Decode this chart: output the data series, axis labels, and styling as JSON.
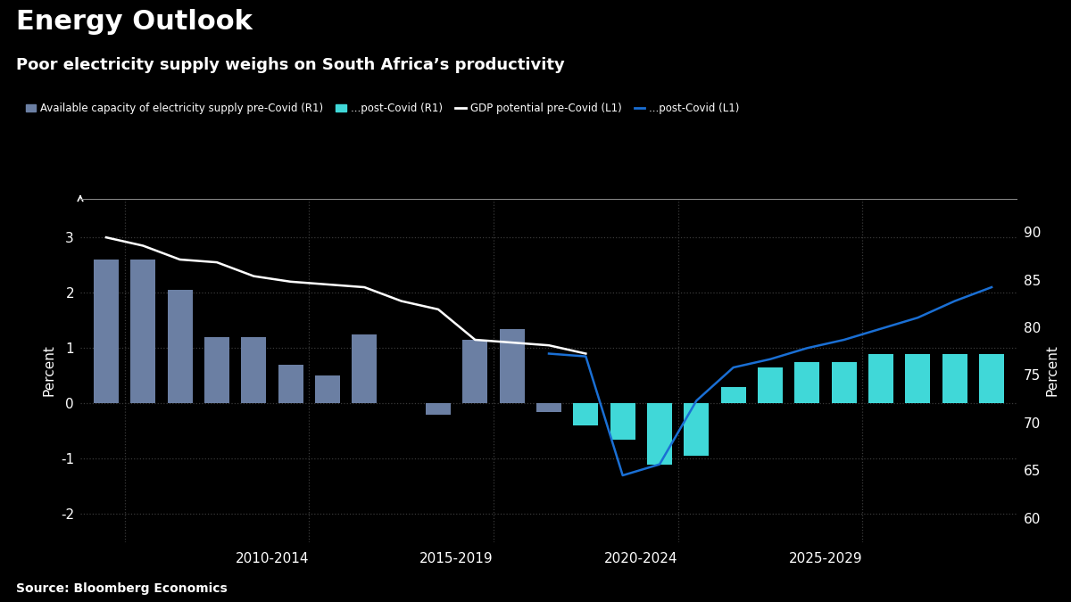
{
  "title": "Energy Outlook",
  "subtitle": "Poor electricity supply weighs on South Africa’s productivity",
  "source": "Source: Bloomberg Economics",
  "background_color": "#000000",
  "text_color": "#ffffff",
  "ylabel_left": "Percent",
  "ylabel_right": "Percent",
  "ylim_left": [
    -2.5,
    3.7
  ],
  "ylim_right": [
    57.5,
    93.5
  ],
  "yticks_left": [
    -2,
    -1,
    0,
    1,
    2,
    3
  ],
  "yticks_right": [
    60,
    65,
    70,
    75,
    80,
    85,
    90
  ],
  "years": [
    2007,
    2008,
    2009,
    2010,
    2011,
    2012,
    2013,
    2014,
    2015,
    2016,
    2017,
    2018,
    2019,
    2020,
    2021,
    2022,
    2023,
    2024,
    2025,
    2026,
    2027,
    2028,
    2029,
    2030,
    2031
  ],
  "bar_pre_covid": [
    2.6,
    2.6,
    2.05,
    1.2,
    1.2,
    0.7,
    0.5,
    1.25,
    0.0,
    -0.2,
    1.15,
    1.35,
    -0.15,
    null,
    null,
    null,
    null,
    null,
    null,
    null,
    null,
    null,
    null,
    null,
    null
  ],
  "bar_post_covid": [
    null,
    null,
    null,
    null,
    null,
    null,
    null,
    null,
    null,
    null,
    null,
    null,
    null,
    -0.4,
    -0.65,
    -1.1,
    -0.95,
    0.3,
    0.65,
    0.75,
    0.75,
    0.9,
    0.9,
    0.9,
    0.9
  ],
  "line_gdp_pre_covid_x": [
    2007,
    2008,
    2009,
    2010,
    2011,
    2012,
    2013,
    2014,
    2015,
    2016,
    2017,
    2018,
    2019,
    2020
  ],
  "line_gdp_pre_covid_y": [
    3.0,
    2.85,
    2.6,
    2.55,
    2.3,
    2.2,
    2.15,
    2.1,
    1.85,
    1.7,
    1.15,
    1.1,
    1.05,
    0.9
  ],
  "line_gdp_post_covid_x": [
    2019,
    2020,
    2021,
    2022,
    2023,
    2024,
    2025,
    2026,
    2027,
    2028,
    2029,
    2030,
    2031
  ],
  "line_gdp_post_covid_y": [
    0.9,
    0.85,
    -1.3,
    -1.1,
    0.05,
    0.65,
    0.8,
    1.0,
    1.15,
    1.35,
    1.55,
    1.85,
    2.1
  ],
  "color_bar_pre": "#6b7fa3",
  "color_bar_post": "#40d8d8",
  "color_line_pre": "#ffffff",
  "color_line_post": "#1a6fd4",
  "grid_color": "#3a3a3a",
  "xtick_groups": [
    "2010-2014",
    "2015-2019",
    "2020-2024",
    "2025-2029"
  ],
  "xtick_group_positions": [
    2011.5,
    2016.5,
    2021.5,
    2026.5
  ],
  "xlim": [
    2006.3,
    2031.7
  ],
  "legend_labels": [
    "Available capacity of electricity supply pre-Covid (R1)",
    "...post-Covid (R1)",
    "GDP potential pre-Covid (L1)",
    "...post-Covid (L1)"
  ]
}
